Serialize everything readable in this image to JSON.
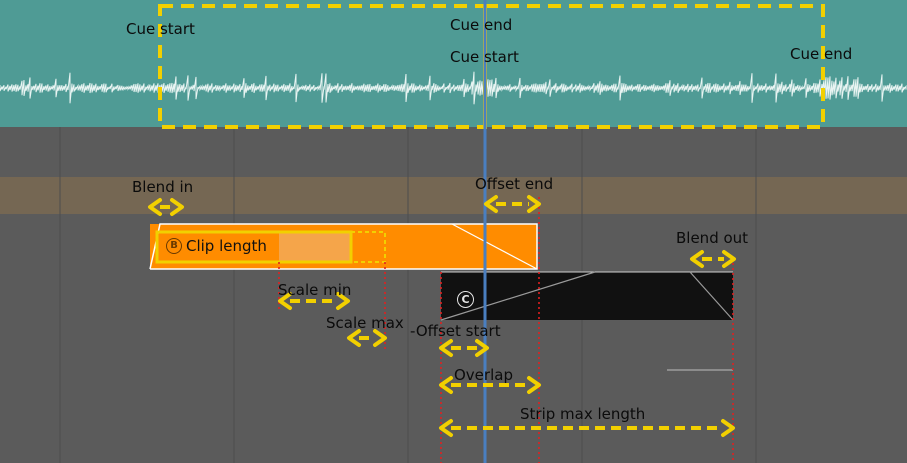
{
  "labels": {
    "cue_start_1": "Cue start",
    "cue_end_1": "Cue end",
    "cue_start_2": "Cue start",
    "cue_end_2": "Cue end",
    "blend_in": "Blend in",
    "offset_end": "Offset end",
    "clip_length": "Clip length",
    "blend_out": "Blend out",
    "scale_min": "Scale min",
    "scale_max": "Scale max",
    "offset_start": "-Offset start",
    "overlap": "Overlap",
    "strip_max_length": "Strip max length"
  },
  "badges": {
    "b": "B",
    "c": "C"
  },
  "colors": {
    "waveform_bg": "#4f9b95",
    "timeline_bg": "#5b5b5b",
    "band": "#7a6a52",
    "clip_orange": "#ff8c00",
    "clip_dark": "#111111",
    "playhead": "#4a7fc0",
    "annotation": "#ffd400",
    "cut_line": "#e02020"
  }
}
